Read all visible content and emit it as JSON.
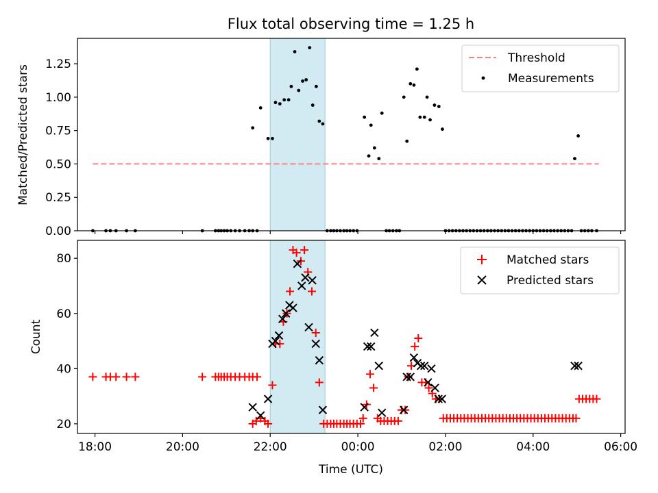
{
  "title": "Flux total observing time = 1.25 h",
  "colors": {
    "matched": "#ff0000",
    "predicted": "#000000",
    "threshold": "#ff7f7f",
    "span": "#add8e6"
  },
  "chart_data": [
    {
      "type": "scatter",
      "ylabel": "Matched/Predicted stars",
      "x_unit": "hours (UTC, 24 = 00:00 next day)",
      "xlim": [
        17.6,
        30.1
      ],
      "ylim": [
        0.0,
        1.44
      ],
      "yticks": [
        "0.00",
        "0.25",
        "0.50",
        "0.75",
        "1.00",
        "1.25"
      ],
      "shaded_span": [
        22.0,
        23.25
      ],
      "legend": {
        "placement": "upper-right",
        "threshold_label": "Threshold",
        "measurements_label": "Measurements"
      },
      "threshold": {
        "value": 0.5,
        "x": [
          17.95,
          29.5
        ]
      },
      "measurements": [
        [
          17.95,
          0
        ],
        [
          18.25,
          0
        ],
        [
          18.35,
          0
        ],
        [
          18.48,
          0
        ],
        [
          18.72,
          0
        ],
        [
          18.92,
          0
        ],
        [
          20.45,
          0
        ],
        [
          20.75,
          0
        ],
        [
          20.82,
          0
        ],
        [
          20.88,
          0
        ],
        [
          20.95,
          0
        ],
        [
          21.02,
          0
        ],
        [
          21.1,
          0
        ],
        [
          21.2,
          0
        ],
        [
          21.3,
          0
        ],
        [
          21.42,
          0
        ],
        [
          21.52,
          0
        ],
        [
          21.6,
          0
        ],
        [
          21.7,
          0
        ],
        [
          21.6,
          0.77
        ],
        [
          21.78,
          0.92
        ],
        [
          21.95,
          0.69
        ],
        [
          22.05,
          0.69
        ],
        [
          22.12,
          0.96
        ],
        [
          22.22,
          0.95
        ],
        [
          22.32,
          0.98
        ],
        [
          22.42,
          0.98
        ],
        [
          22.48,
          1.08
        ],
        [
          22.56,
          1.34
        ],
        [
          22.65,
          1.05
        ],
        [
          22.74,
          1.12
        ],
        [
          22.82,
          1.13
        ],
        [
          22.9,
          1.37
        ],
        [
          22.97,
          0.94
        ],
        [
          23.05,
          1.08
        ],
        [
          23.12,
          0.82
        ],
        [
          23.2,
          0.8
        ],
        [
          23.3,
          0
        ],
        [
          23.38,
          0
        ],
        [
          23.45,
          0
        ],
        [
          23.52,
          0
        ],
        [
          23.6,
          0
        ],
        [
          23.68,
          0
        ],
        [
          23.75,
          0
        ],
        [
          23.82,
          0
        ],
        [
          23.9,
          0
        ],
        [
          23.98,
          0
        ],
        [
          24.15,
          0.85
        ],
        [
          24.25,
          0.56
        ],
        [
          24.3,
          0.79
        ],
        [
          24.38,
          0.62
        ],
        [
          24.48,
          0.54
        ],
        [
          24.55,
          0.88
        ],
        [
          24.65,
          0
        ],
        [
          24.72,
          0
        ],
        [
          24.8,
          0
        ],
        [
          24.88,
          0
        ],
        [
          24.95,
          0
        ],
        [
          25.05,
          1.0
        ],
        [
          25.12,
          0.67
        ],
        [
          25.2,
          1.1
        ],
        [
          25.28,
          1.09
        ],
        [
          25.35,
          1.21
        ],
        [
          25.42,
          0.85
        ],
        [
          25.52,
          0.85
        ],
        [
          25.58,
          1.0
        ],
        [
          25.65,
          0.83
        ],
        [
          25.75,
          0.94
        ],
        [
          25.85,
          0.93
        ],
        [
          25.93,
          0.76
        ],
        [
          26.0,
          0
        ],
        [
          26.08,
          0
        ],
        [
          26.16,
          0
        ],
        [
          26.24,
          0
        ],
        [
          26.32,
          0
        ],
        [
          26.4,
          0
        ],
        [
          26.48,
          0
        ],
        [
          26.56,
          0
        ],
        [
          26.64,
          0
        ],
        [
          26.72,
          0
        ],
        [
          26.8,
          0
        ],
        [
          26.88,
          0
        ],
        [
          26.96,
          0
        ],
        [
          27.04,
          0
        ],
        [
          27.12,
          0
        ],
        [
          27.2,
          0
        ],
        [
          27.28,
          0
        ],
        [
          27.36,
          0
        ],
        [
          27.44,
          0
        ],
        [
          27.52,
          0
        ],
        [
          27.6,
          0
        ],
        [
          27.68,
          0
        ],
        [
          27.76,
          0
        ],
        [
          27.84,
          0
        ],
        [
          27.92,
          0
        ],
        [
          28.0,
          0
        ],
        [
          28.08,
          0
        ],
        [
          28.16,
          0
        ],
        [
          28.24,
          0
        ],
        [
          28.32,
          0
        ],
        [
          28.4,
          0
        ],
        [
          28.48,
          0
        ],
        [
          28.56,
          0
        ],
        [
          28.64,
          0
        ],
        [
          28.72,
          0
        ],
        [
          28.8,
          0
        ],
        [
          28.88,
          0
        ],
        [
          28.95,
          0.54
        ],
        [
          29.03,
          0.71
        ],
        [
          29.1,
          0
        ],
        [
          29.18,
          0
        ],
        [
          29.26,
          0
        ],
        [
          29.34,
          0
        ],
        [
          29.45,
          0
        ]
      ]
    },
    {
      "type": "scatter",
      "ylabel": "Count",
      "xlabel": "Time (UTC)",
      "x_unit": "hours (UTC, 24 = 00:00 next day)",
      "xlim": [
        17.6,
        30.1
      ],
      "ylim": [
        16.5,
        86.5
      ],
      "yticks": [
        "20",
        "40",
        "60",
        "80"
      ],
      "xticks": [
        {
          "value": 18,
          "label": "18:00"
        },
        {
          "value": 20,
          "label": "20:00"
        },
        {
          "value": 22,
          "label": "22:00"
        },
        {
          "value": 24,
          "label": "00:00"
        },
        {
          "value": 26,
          "label": "02:00"
        },
        {
          "value": 28,
          "label": "04:00"
        },
        {
          "value": 30,
          "label": "06:00"
        }
      ],
      "shaded_span": [
        22.0,
        23.25
      ],
      "legend": {
        "placement": "upper-right",
        "matched_label": "Matched stars",
        "predicted_label": "Predicted stars"
      },
      "matched": [
        [
          17.95,
          37
        ],
        [
          18.25,
          37
        ],
        [
          18.35,
          37
        ],
        [
          18.48,
          37
        ],
        [
          18.72,
          37
        ],
        [
          18.92,
          37
        ],
        [
          20.45,
          37
        ],
        [
          20.75,
          37
        ],
        [
          20.82,
          37
        ],
        [
          20.88,
          37
        ],
        [
          20.95,
          37
        ],
        [
          21.02,
          37
        ],
        [
          21.1,
          37
        ],
        [
          21.2,
          37
        ],
        [
          21.3,
          37
        ],
        [
          21.42,
          37
        ],
        [
          21.52,
          37
        ],
        [
          21.6,
          37
        ],
        [
          21.7,
          37
        ],
        [
          21.6,
          20
        ],
        [
          21.68,
          21
        ],
        [
          21.78,
          22
        ],
        [
          21.88,
          21
        ],
        [
          21.95,
          20
        ],
        [
          22.05,
          34
        ],
        [
          22.12,
          49
        ],
        [
          22.22,
          49
        ],
        [
          22.3,
          57
        ],
        [
          22.38,
          60
        ],
        [
          22.45,
          68
        ],
        [
          22.52,
          83
        ],
        [
          22.6,
          82
        ],
        [
          22.7,
          79
        ],
        [
          22.78,
          83
        ],
        [
          22.86,
          75
        ],
        [
          22.95,
          68
        ],
        [
          23.04,
          53
        ],
        [
          23.12,
          35
        ],
        [
          23.22,
          20
        ],
        [
          23.3,
          20
        ],
        [
          23.38,
          20
        ],
        [
          23.45,
          20
        ],
        [
          23.52,
          20
        ],
        [
          23.6,
          20
        ],
        [
          23.68,
          20
        ],
        [
          23.75,
          20
        ],
        [
          23.82,
          20
        ],
        [
          23.9,
          20
        ],
        [
          23.98,
          20
        ],
        [
          24.06,
          20
        ],
        [
          24.12,
          22
        ],
        [
          24.2,
          27
        ],
        [
          24.28,
          38
        ],
        [
          24.36,
          33
        ],
        [
          24.45,
          22
        ],
        [
          24.52,
          21
        ],
        [
          24.6,
          21
        ],
        [
          24.68,
          21
        ],
        [
          24.76,
          21
        ],
        [
          24.84,
          21
        ],
        [
          24.92,
          21
        ],
        [
          25.0,
          25
        ],
        [
          25.08,
          25
        ],
        [
          25.15,
          37
        ],
        [
          25.22,
          41
        ],
        [
          25.3,
          48
        ],
        [
          25.38,
          51
        ],
        [
          25.46,
          35
        ],
        [
          25.55,
          35
        ],
        [
          25.62,
          33
        ],
        [
          25.7,
          31
        ],
        [
          25.78,
          29
        ],
        [
          25.86,
          29
        ],
        [
          25.95,
          22
        ],
        [
          26.03,
          22
        ],
        [
          26.11,
          22
        ],
        [
          26.19,
          22
        ],
        [
          26.27,
          22
        ],
        [
          26.35,
          22
        ],
        [
          26.43,
          22
        ],
        [
          26.51,
          22
        ],
        [
          26.59,
          22
        ],
        [
          26.67,
          22
        ],
        [
          26.75,
          22
        ],
        [
          26.83,
          22
        ],
        [
          26.91,
          22
        ],
        [
          26.99,
          22
        ],
        [
          27.07,
          22
        ],
        [
          27.15,
          22
        ],
        [
          27.23,
          22
        ],
        [
          27.31,
          22
        ],
        [
          27.39,
          22
        ],
        [
          27.47,
          22
        ],
        [
          27.55,
          22
        ],
        [
          27.63,
          22
        ],
        [
          27.71,
          22
        ],
        [
          27.79,
          22
        ],
        [
          27.87,
          22
        ],
        [
          27.95,
          22
        ],
        [
          28.03,
          22
        ],
        [
          28.11,
          22
        ],
        [
          28.19,
          22
        ],
        [
          28.27,
          22
        ],
        [
          28.35,
          22
        ],
        [
          28.43,
          22
        ],
        [
          28.51,
          22
        ],
        [
          28.59,
          22
        ],
        [
          28.67,
          22
        ],
        [
          28.75,
          22
        ],
        [
          28.83,
          22
        ],
        [
          28.91,
          22
        ],
        [
          28.98,
          22
        ],
        [
          29.05,
          29
        ],
        [
          29.13,
          29
        ],
        [
          29.21,
          29
        ],
        [
          29.29,
          29
        ],
        [
          29.37,
          29
        ],
        [
          29.45,
          29
        ]
      ],
      "predicted": [
        [
          21.6,
          26
        ],
        [
          21.78,
          23
        ],
        [
          21.95,
          29
        ],
        [
          22.05,
          49
        ],
        [
          22.12,
          50
        ],
        [
          22.2,
          52
        ],
        [
          22.28,
          58
        ],
        [
          22.36,
          60
        ],
        [
          22.44,
          63
        ],
        [
          22.52,
          62
        ],
        [
          22.62,
          78
        ],
        [
          22.72,
          70
        ],
        [
          22.8,
          73
        ],
        [
          22.88,
          55
        ],
        [
          22.96,
          72
        ],
        [
          23.04,
          49
        ],
        [
          23.12,
          43
        ],
        [
          23.2,
          25
        ],
        [
          24.15,
          26
        ],
        [
          24.22,
          48
        ],
        [
          24.3,
          48
        ],
        [
          24.38,
          53
        ],
        [
          24.48,
          41
        ],
        [
          24.55,
          24
        ],
        [
          25.05,
          25
        ],
        [
          25.12,
          37
        ],
        [
          25.2,
          37
        ],
        [
          25.28,
          44
        ],
        [
          25.36,
          42
        ],
        [
          25.44,
          41
        ],
        [
          25.52,
          41
        ],
        [
          25.6,
          35
        ],
        [
          25.68,
          40
        ],
        [
          25.76,
          33
        ],
        [
          25.84,
          29
        ],
        [
          25.92,
          29
        ],
        [
          28.95,
          41
        ],
        [
          29.03,
          41
        ]
      ]
    }
  ]
}
